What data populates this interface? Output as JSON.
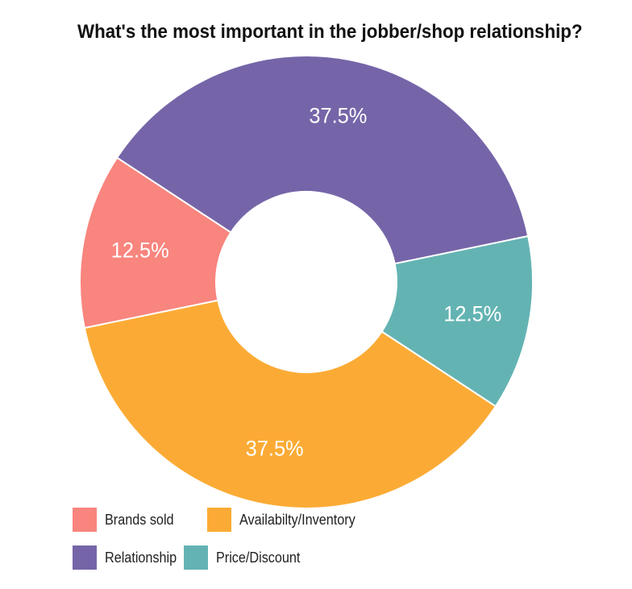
{
  "chart_data": {
    "type": "pie",
    "variant": "donut",
    "title": "What's the most important in the jobber/shop relationship?",
    "slices": [
      {
        "name": "Relationship",
        "value": 37.5,
        "label": "37.5%",
        "color": "#7565a8"
      },
      {
        "name": "Price/Discount",
        "value": 12.5,
        "label": "12.5%",
        "color": "#64b3b3"
      },
      {
        "name": "Availabilty/Inventory",
        "value": 37.5,
        "label": "37.5%",
        "color": "#fbab35"
      },
      {
        "name": "Brands sold",
        "value": 12.5,
        "label": "12.5%",
        "color": "#f8857e"
      }
    ],
    "legend": {
      "placement": "bottom-left",
      "entries": [
        {
          "name": "Brands sold",
          "color": "#f8857e"
        },
        {
          "name": "Availabilty/Inventory",
          "color": "#fbab35"
        },
        {
          "name": "Relationship",
          "color": "#7565a8"
        },
        {
          "name": "Price/Discount",
          "color": "#64b3b3"
        }
      ]
    }
  }
}
